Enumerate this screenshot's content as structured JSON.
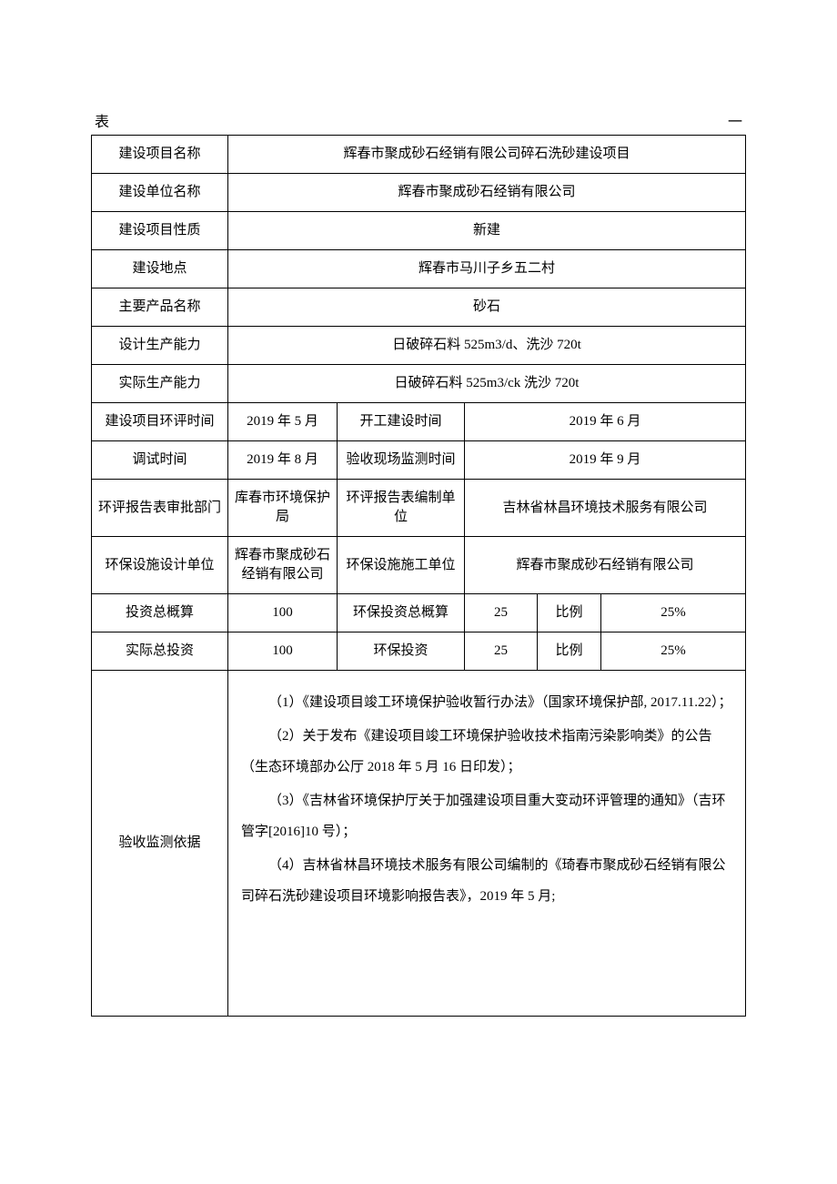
{
  "header": {
    "left": "表",
    "right": "一"
  },
  "rows": {
    "project_name": {
      "label": "建设项目名称",
      "value": "辉春市聚成砂石经销有限公司碎石洗砂建设项目"
    },
    "unit_name": {
      "label": "建设单位名称",
      "value": "辉春市聚成砂石经销有限公司"
    },
    "project_nature": {
      "label": "建设项目性质",
      "value": "新建"
    },
    "location": {
      "label": "建设地点",
      "value": "辉春市马川子乡五二村"
    },
    "product_name": {
      "label": "主要产品名称",
      "value": "砂石"
    },
    "design_capacity": {
      "label": "设计生产能力",
      "value": "日破碎石料 525m3/d、洗沙 720t"
    },
    "actual_capacity": {
      "label": "实际生产能力",
      "value": "日破碎石料 525m3/ck 洗沙 720t"
    },
    "eia_time": {
      "label": "建设项目环评时间",
      "value": "2019 年 5 月",
      "label2": "开工建设时间",
      "value2": "2019 年 6 月"
    },
    "trial_time": {
      "label": "调试时间",
      "value": "2019 年 8 月",
      "label2": "验收现场监测时间",
      "value2": "2019 年 9 月"
    },
    "eia_dept": {
      "label": "环评报告表审批部门",
      "value": "库春市环境保护局",
      "label2": "环评报告表编制单位",
      "value2": "吉林省林昌环境技术服务有限公司"
    },
    "env_design": {
      "label": "环保设施设计单位",
      "value": "辉春市聚成砂石经销有限公司",
      "label2": "环保设施施工单位",
      "value2": "辉春市聚成砂石经销有限公司"
    },
    "budget": {
      "label": "投资总概算",
      "value": "100",
      "label2": "环保投资总概算",
      "value2": "25",
      "label3": "比例",
      "value3": "25%"
    },
    "actual_invest": {
      "label": "实际总投资",
      "value": "100",
      "label2": "环保投资",
      "value2": "25",
      "label3": "比例",
      "value3": "25%"
    },
    "basis": {
      "label": "验收监测依据",
      "items": [
        "（1）《建设项目竣工环境保护验收暂行办法》（国家环境保护部, 2017.11.22）；",
        "（2）关于发布《建设项目竣工环境保护验收技术指南污染影响类》的公告（生态环境部办公厅 2018 年 5 月 16 日印发）；",
        "（3）《吉林省环境保护厅关于加强建设项目重大变动环评管理的通知》（吉环管字[2016]10 号）；",
        "（4）吉林省林昌环境技术服务有限公司编制的《琦春市聚成砂石经销有限公司碎石洗砂建设项目环境影响报告表》，2019 年 5 月;"
      ]
    }
  },
  "layout": {
    "col_widths": [
      "150px",
      "120px",
      "140px",
      "80px",
      "70px",
      "auto"
    ]
  }
}
